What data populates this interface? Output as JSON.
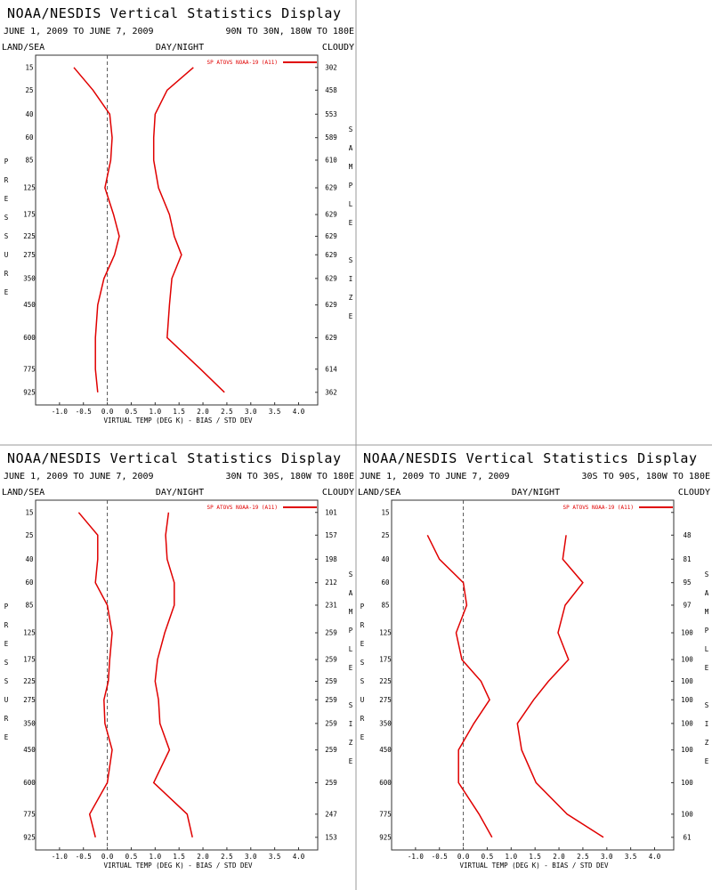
{
  "chart_data": [
    {
      "type": "line",
      "title": "NOAA/NESDIS Vertical Statistics Display",
      "date_range": "JUNE 1, 2009 TO JUNE 7, 2009",
      "region": "90N TO 30N, 180W TO 180E",
      "land_sea": "LAND/SEA",
      "day_night": "DAY/NIGHT",
      "cloud": "CLOUDY",
      "ylabel": "PRESSURE",
      "y2label": "SAMPLE SIZE",
      "xlabel": "VIRTUAL TEMP (DEG K) - BIAS / STD DEV",
      "y": [
        15,
        25,
        40,
        60,
        85,
        125,
        175,
        225,
        275,
        350,
        450,
        600,
        775,
        925
      ],
      "series": [
        {
          "name": "SP ATOVS NOAA-19 (A11)",
          "color": "#e00000",
          "values": [
            -0.7,
            -0.3,
            0.05,
            0.1,
            0.07,
            -0.05,
            0.13,
            0.25,
            0.15,
            -0.07,
            -0.2,
            -0.25,
            -0.25,
            -0.2
          ]
        },
        {
          "color": "#e00000",
          "values": [
            1.8,
            1.25,
            1.0,
            0.97,
            0.97,
            1.07,
            1.3,
            1.4,
            1.55,
            1.35,
            1.3,
            1.25,
            1.95,
            2.45
          ]
        }
      ],
      "sample_size": [
        302,
        458,
        553,
        589,
        610,
        629,
        629,
        629,
        629,
        629,
        629,
        629,
        614,
        362
      ],
      "xlim": [
        -1.5,
        4.4
      ],
      "xticks": [
        {
          "value": -1,
          "label": "-1.0"
        },
        -0.5,
        {
          "value": 0,
          "label": "0.0"
        },
        0.5,
        {
          "value": 1,
          "label": "1.0"
        },
        1.5,
        {
          "value": 2,
          "label": "2.0"
        },
        2.5,
        {
          "value": 3,
          "label": "3.0"
        },
        3.5,
        {
          "value": 4,
          "label": "4.0"
        }
      ],
      "ylim": [
        11,
        1015
      ],
      "yticks": [
        15,
        25,
        40,
        60,
        85,
        125,
        175,
        225,
        275,
        350,
        450,
        600,
        775,
        925
      ],
      "y_power": 0.286,
      "y_inverted": true,
      "zero_line": 0
    },
    {
      "type": "line",
      "title": "NOAA/NESDIS Vertical Statistics Display",
      "date_range": "JUNE 1, 2009 TO JUNE 7, 2009",
      "region": "30N TO 30S, 180W TO 180E",
      "land_sea": "LAND/SEA",
      "day_night": "DAY/NIGHT",
      "cloud": "CLOUDY",
      "ylabel": "PRESSURE",
      "y2label": "SAMPLE SIZE",
      "xlabel": "VIRTUAL TEMP (DEG K) - BIAS / STD DEV",
      "y": [
        15,
        25,
        40,
        60,
        85,
        125,
        175,
        225,
        275,
        350,
        450,
        600,
        775,
        925
      ],
      "series": [
        {
          "name": "SP ATOVS NOAA-19 (A11)",
          "color": "#e00000",
          "values": [
            -0.6,
            -0.2,
            -0.2,
            -0.25,
            0,
            0.1,
            0.05,
            0.02,
            -0.07,
            -0.05,
            0.1,
            0,
            -0.37,
            -0.25
          ]
        },
        {
          "color": "#e00000",
          "values": [
            1.28,
            1.22,
            1.25,
            1.4,
            1.4,
            1.2,
            1.05,
            1.0,
            1.07,
            1.1,
            1.3,
            0.97,
            1.67,
            1.78
          ]
        }
      ],
      "sample_size": [
        101,
        157,
        198,
        212,
        231,
        259,
        259,
        259,
        259,
        259,
        259,
        259,
        247,
        153
      ],
      "xlim": [
        -1.5,
        4.4
      ],
      "xticks": [
        {
          "value": -1,
          "label": "-1.0"
        },
        -0.5,
        {
          "value": 0,
          "label": "0.0"
        },
        0.5,
        {
          "value": 1,
          "label": "1.0"
        },
        1.5,
        {
          "value": 2,
          "label": "2.0"
        },
        2.5,
        {
          "value": 3,
          "label": "3.0"
        },
        3.5,
        {
          "value": 4,
          "label": "4.0"
        }
      ],
      "ylim": [
        11,
        1015
      ],
      "yticks": [
        15,
        25,
        40,
        60,
        85,
        125,
        175,
        225,
        275,
        350,
        450,
        600,
        775,
        925
      ],
      "y_power": 0.286,
      "y_inverted": true,
      "zero_line": 0
    },
    {
      "type": "line",
      "title": "NOAA/NESDIS Vertical Statistics Display",
      "date_range": "JUNE 1, 2009 TO JUNE 7, 2009",
      "region": "30S TO 90S, 180W TO 180E",
      "land_sea": "LAND/SEA",
      "day_night": "DAY/NIGHT",
      "cloud": "CLOUDY",
      "ylabel": "PRESSURE",
      "y2label": "SAMPLE SIZE",
      "xlabel": "VIRTUAL TEMP (DEG K) - BIAS / STD DEV",
      "y": [
        15,
        25,
        40,
        60,
        85,
        125,
        175,
        225,
        275,
        350,
        450,
        600,
        775,
        925
      ],
      "series": [
        {
          "name": "SP ATOVS NOAA-19 (A11)",
          "color": "#e00000",
          "values": [
            null,
            -0.75,
            -0.5,
            0,
            0.07,
            -0.15,
            -0.03,
            0.37,
            0.55,
            0.22,
            -0.1,
            -0.1,
            0.33,
            0.6
          ]
        },
        {
          "color": "#e00000",
          "values": [
            null,
            2.15,
            2.08,
            2.5,
            2.13,
            1.98,
            2.2,
            1.78,
            1.47,
            1.13,
            1.22,
            1.52,
            2.17,
            2.93
          ]
        }
      ],
      "sample_size": [
        null,
        48,
        81,
        95,
        97,
        100,
        100,
        100,
        100,
        100,
        100,
        100,
        100,
        61
      ],
      "xlim": [
        -1.5,
        4.4
      ],
      "xticks": [
        {
          "value": -1,
          "label": "-1.0"
        },
        -0.5,
        {
          "value": 0,
          "label": "0.0"
        },
        0.5,
        {
          "value": 1,
          "label": "1.0"
        },
        1.5,
        {
          "value": 2,
          "label": "2.0"
        },
        2.5,
        {
          "value": 3,
          "label": "3.0"
        },
        3.5,
        {
          "value": 4,
          "label": "4.0"
        }
      ],
      "ylim": [
        11,
        1015
      ],
      "yticks": [
        15,
        25,
        40,
        60,
        85,
        125,
        175,
        225,
        275,
        350,
        450,
        600,
        775,
        925
      ],
      "y_power": 0.286,
      "y_inverted": true,
      "zero_line": 0
    }
  ]
}
